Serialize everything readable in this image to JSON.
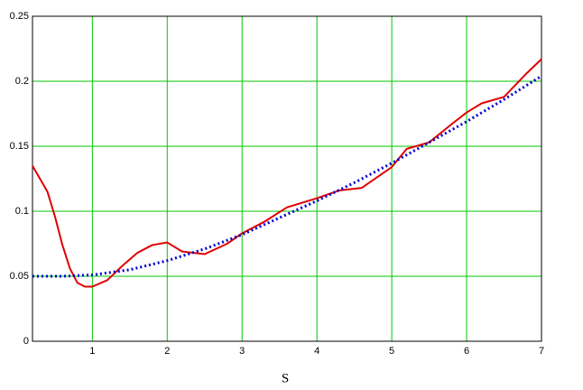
{
  "chart_data": {
    "type": "line",
    "x_label": "S",
    "xlim": [
      0.2,
      7
    ],
    "xticks": [
      1,
      2,
      3,
      4,
      5,
      6,
      7
    ],
    "ylim": [
      0,
      0.25
    ],
    "yticks": [
      0,
      0.05,
      0.1,
      0.15,
      0.2,
      0.25
    ],
    "grid": true,
    "grid_color": "#00c800",
    "series": [
      {
        "color": "#e00000",
        "style": "solid",
        "x": [
          0.2,
          0.3,
          0.4,
          0.5,
          0.6,
          0.7,
          0.8,
          0.9,
          1.0,
          1.2,
          1.4,
          1.6,
          1.8,
          2.0,
          2.2,
          2.5,
          2.8,
          3.0,
          3.3,
          3.6,
          4.0,
          4.3,
          4.6,
          5.0,
          5.2,
          5.5,
          5.8,
          6.0,
          6.2,
          6.5,
          6.8,
          7.0
        ],
        "values": [
          0.135,
          0.125,
          0.115,
          0.096,
          0.074,
          0.056,
          0.045,
          0.042,
          0.042,
          0.047,
          0.058,
          0.068,
          0.074,
          0.076,
          0.069,
          0.067,
          0.075,
          0.083,
          0.092,
          0.103,
          0.11,
          0.116,
          0.118,
          0.134,
          0.148,
          0.153,
          0.167,
          0.176,
          0.183,
          0.188,
          0.206,
          0.217
        ]
      },
      {
        "color": "#0000d0",
        "style": "dotted",
        "x": [
          0.2,
          0.6,
          1.0,
          1.5,
          2.0,
          2.5,
          3.0,
          3.5,
          4.0,
          4.5,
          5.0,
          5.5,
          6.0,
          6.5,
          7.0
        ],
        "values": [
          0.05,
          0.05,
          0.051,
          0.055,
          0.062,
          0.071,
          0.082,
          0.095,
          0.108,
          0.122,
          0.137,
          0.153,
          0.169,
          0.186,
          0.204
        ]
      }
    ]
  }
}
